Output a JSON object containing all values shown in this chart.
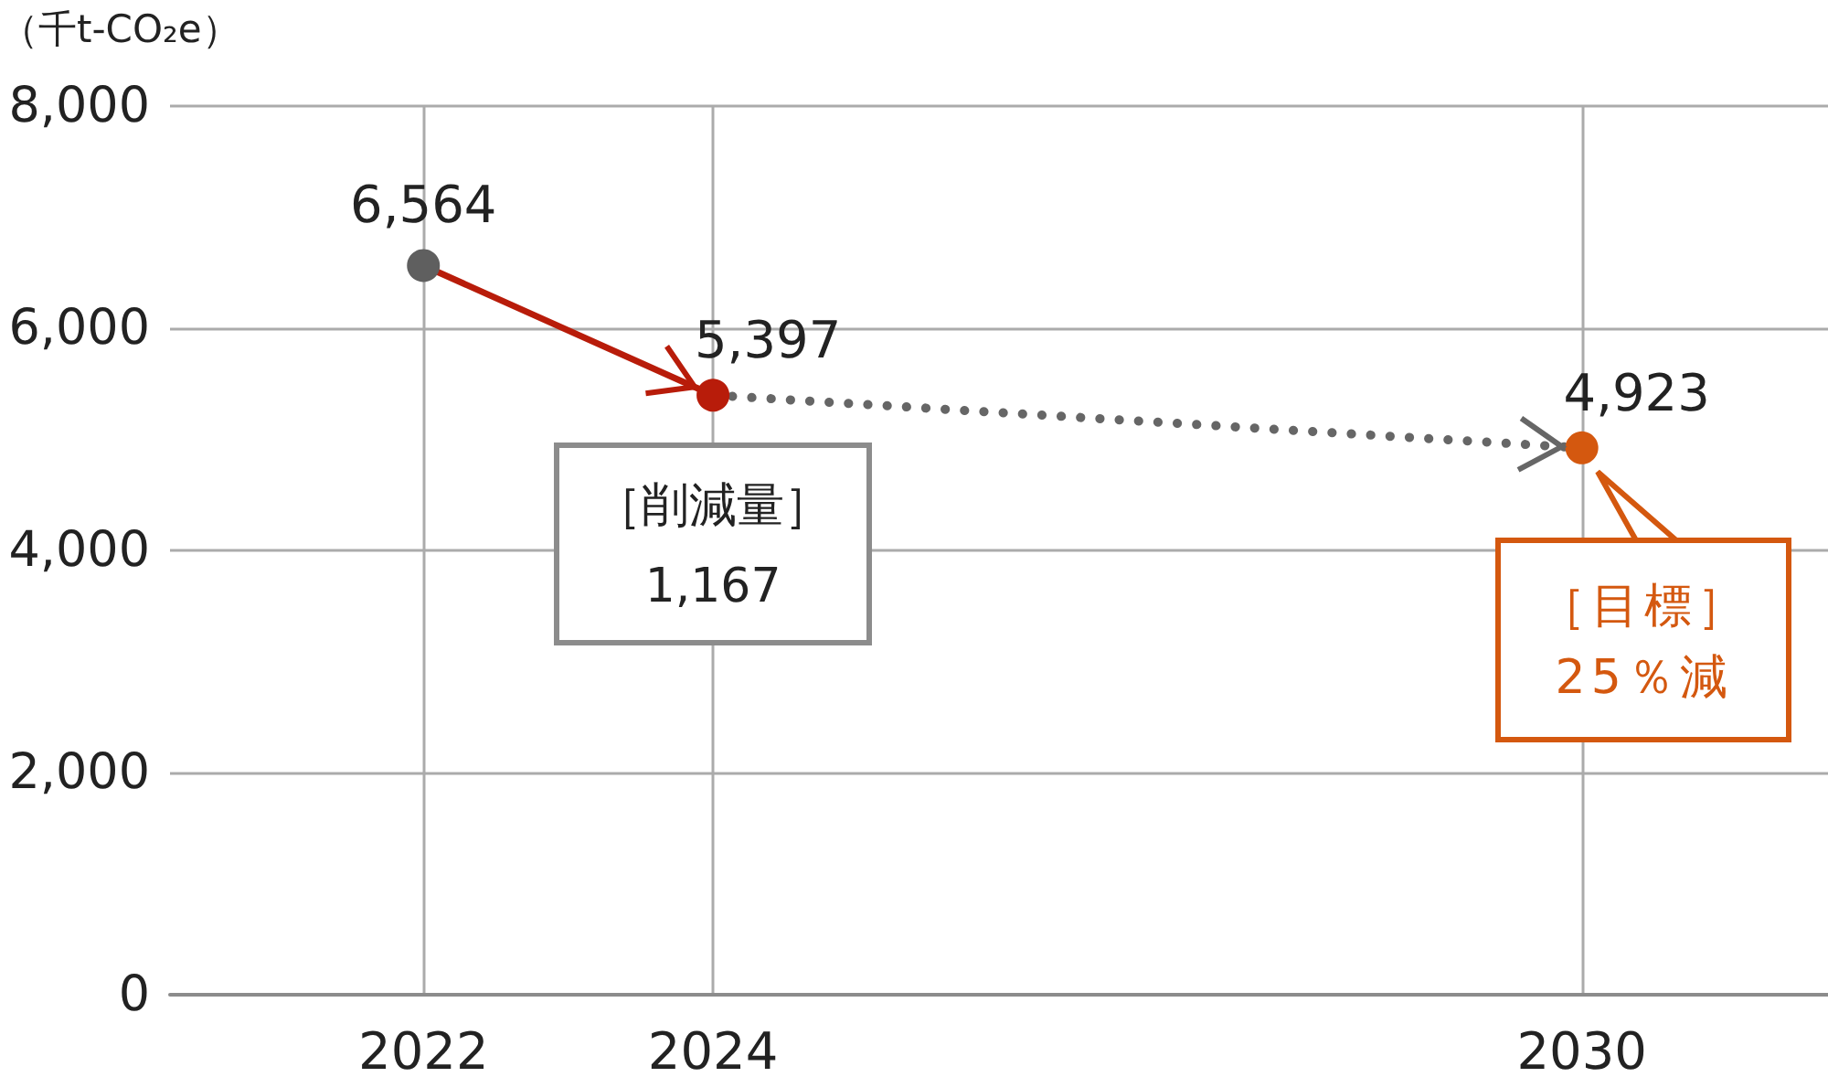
{
  "chart_data": {
    "type": "scatter",
    "ylabel": "（千t-CO₂e）",
    "annotations": [
      {
        "text": "［削減量］\n1,167",
        "x": 2024,
        "y": 5397
      },
      {
        "text": "［目標］\n25％減",
        "x": 2030,
        "y": 4923
      }
    ],
    "xlim": [
      2020.25,
      2031.7
    ],
    "xticks": [
      2022,
      2024,
      2030
    ],
    "ylim": [
      0,
      8000
    ],
    "yticks": [
      0,
      {
        "value": 2000,
        "label": "2,000"
      },
      {
        "value": 4000,
        "label": "4,000"
      },
      {
        "value": 6000,
        "label": "6,000"
      },
      {
        "value": 8000,
        "label": "8,000"
      }
    ],
    "grid": true,
    "series": [
      {
        "type": "line",
        "x": [
          2022,
          2024
        ],
        "values": [
          6564,
          5397
        ],
        "color": "#b81c0a",
        "line_style": "solid"
      },
      {
        "type": "line",
        "x": [
          2024,
          2030
        ],
        "values": [
          5397,
          4923
        ],
        "color": "#666666",
        "line_style": "dotted"
      },
      {
        "x": [
          2022,
          2024,
          2030
        ],
        "values": [
          6564,
          5397,
          4923
        ],
        "colors": [
          "#5f5f5f",
          "#b81c0a",
          "#d4580f"
        ],
        "marker": "circle",
        "value_labels": [
          "6,564",
          "5,397",
          "4,923"
        ]
      }
    ]
  }
}
